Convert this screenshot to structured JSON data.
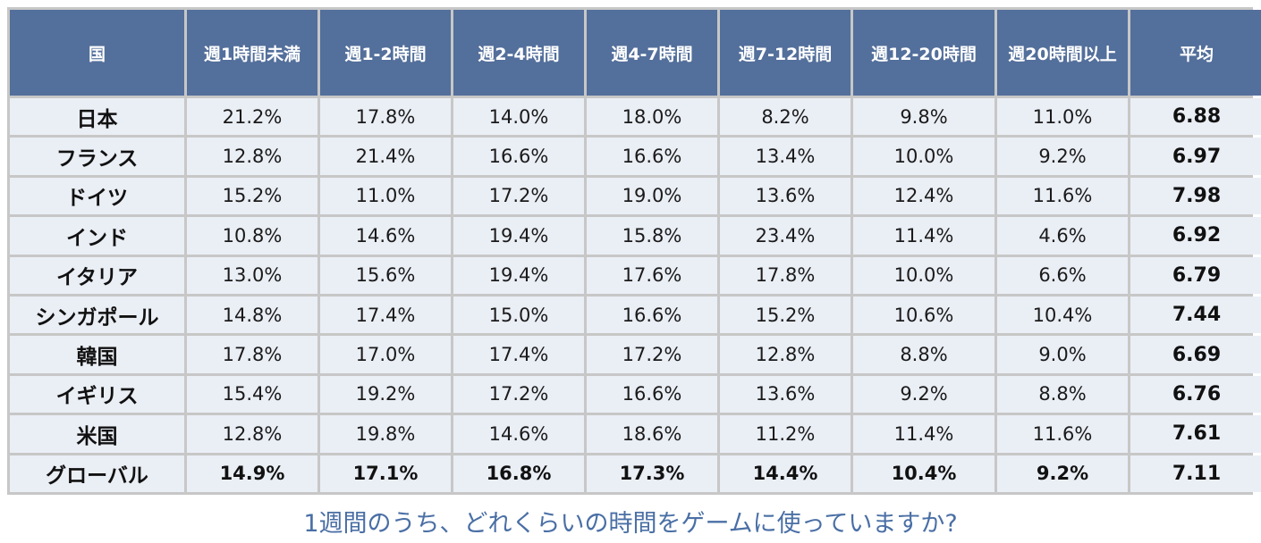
{
  "caption": "1週間のうち、どれくらいの時間をゲームに使っていますか?",
  "colors": {
    "header_bg": "#536f9b",
    "header_text": "#ffffff",
    "cell_bg": "#eaeef5",
    "grid_line": "#c7c7c7",
    "caption_text": "#4a6fa5"
  },
  "chart_data": {
    "type": "table",
    "columns": [
      "国",
      "週1時間未満",
      "週1-2時間",
      "週2-4時間",
      "週4-7時間",
      "週7-12時間",
      "週12-20時間",
      "週20時間以上",
      "平均"
    ],
    "rows": [
      [
        "日本",
        "21.2%",
        "17.8%",
        "14.0%",
        "18.0%",
        "8.2%",
        "9.8%",
        "11.0%",
        "6.88"
      ],
      [
        "フランス",
        "12.8%",
        "21.4%",
        "16.6%",
        "16.6%",
        "13.4%",
        "10.0%",
        "9.2%",
        "6.97"
      ],
      [
        "ドイツ",
        "15.2%",
        "11.0%",
        "17.2%",
        "19.0%",
        "13.6%",
        "12.4%",
        "11.6%",
        "7.98"
      ],
      [
        "インド",
        "10.8%",
        "14.6%",
        "19.4%",
        "15.8%",
        "23.4%",
        "11.4%",
        "4.6%",
        "6.92"
      ],
      [
        "イタリア",
        "13.0%",
        "15.6%",
        "19.4%",
        "17.6%",
        "17.8%",
        "10.0%",
        "6.6%",
        "6.79"
      ],
      [
        "シンガポール",
        "14.8%",
        "17.4%",
        "15.0%",
        "16.6%",
        "15.2%",
        "10.6%",
        "10.4%",
        "7.44"
      ],
      [
        "韓国",
        "17.8%",
        "17.0%",
        "17.4%",
        "17.2%",
        "12.8%",
        "8.8%",
        "9.0%",
        "6.69"
      ],
      [
        "イギリス",
        "15.4%",
        "19.2%",
        "17.2%",
        "16.6%",
        "13.6%",
        "9.2%",
        "8.8%",
        "6.76"
      ],
      [
        "米国",
        "12.8%",
        "19.8%",
        "14.6%",
        "18.6%",
        "11.2%",
        "11.4%",
        "11.6%",
        "7.61"
      ],
      [
        "グローバル",
        "14.9%",
        "17.1%",
        "16.8%",
        "17.3%",
        "14.4%",
        "10.4%",
        "9.2%",
        "7.11"
      ]
    ],
    "bold_last_row": true,
    "bold_last_column": true
  }
}
